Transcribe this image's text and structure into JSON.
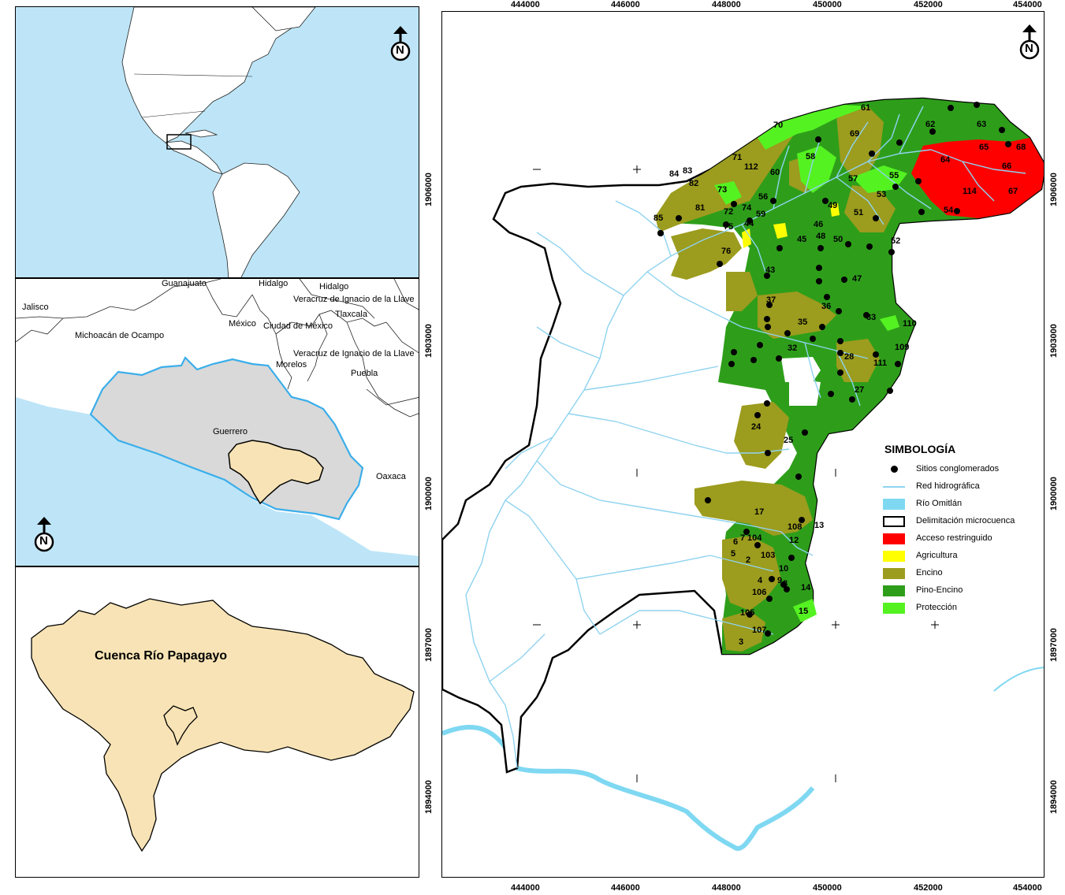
{
  "north_label": "N",
  "panel_world": {
    "name": "world-locator-map"
  },
  "panel_region": {
    "states": [
      "Guanajuato",
      "Hidalgo",
      "Hidalgo",
      "Jalisco",
      "Veracruz de Ignacio de la Llave",
      "Tlaxcala",
      "Michoacán de Ocampo",
      "México",
      "Ciudad de México",
      "Veracruz de Ignacio de la Llave",
      "Morelos",
      "Puebla",
      "Guerrero",
      "Oaxaca"
    ]
  },
  "panel_basin": {
    "label": "Cuenca Río Papagayo"
  },
  "main_map": {
    "x_ticks": [
      "444000",
      "446000",
      "448000",
      "450000",
      "452000",
      "454000"
    ],
    "y_ticks": [
      "1906000",
      "1903000",
      "1900000",
      "1897000",
      "1894000"
    ],
    "site_labels": [
      "61",
      "62",
      "63",
      "70",
      "69",
      "65",
      "68",
      "64",
      "66",
      "71",
      "112",
      "58",
      "60",
      "57",
      "55",
      "84",
      "83",
      "82",
      "73",
      "53",
      "114",
      "67",
      "56",
      "54",
      "72",
      "74",
      "81",
      "49",
      "51",
      "59",
      "85",
      "75",
      "44",
      "46",
      "48",
      "45",
      "50",
      "52",
      "76",
      "43",
      "47",
      "37",
      "36",
      "33",
      "110",
      "35",
      "32",
      "109",
      "28",
      "111",
      "27",
      "24",
      "25",
      "17",
      "108",
      "13",
      "7",
      "104",
      "6",
      "12",
      "5",
      "2",
      "103",
      "10",
      "9",
      "4",
      "8",
      "14",
      "106",
      "105",
      "15",
      "107",
      "3"
    ]
  },
  "legend": {
    "title": "SIMBOLOGÍA",
    "items": [
      {
        "label": "Sitios conglomerados",
        "color": "#000000",
        "kind": "dot"
      },
      {
        "label": "Red hidrográfica",
        "color": "#8fd3f0",
        "kind": "line"
      },
      {
        "label": "Río Omitlán",
        "color": "#7fd8f2",
        "kind": "fill"
      },
      {
        "label": "Delimitación microcuenca",
        "color": "#ffffff",
        "kind": "outline"
      },
      {
        "label": "Acceso restringuido",
        "color": "#ff0000",
        "kind": "fill"
      },
      {
        "label": "Agricultura",
        "color": "#ffff00",
        "kind": "fill"
      },
      {
        "label": "Encino",
        "color": "#9c9c1e",
        "kind": "fill"
      },
      {
        "label": "Pino-Encino",
        "color": "#2e9e1a",
        "kind": "fill"
      },
      {
        "label": "Protección",
        "color": "#55f222",
        "kind": "fill"
      }
    ]
  }
}
